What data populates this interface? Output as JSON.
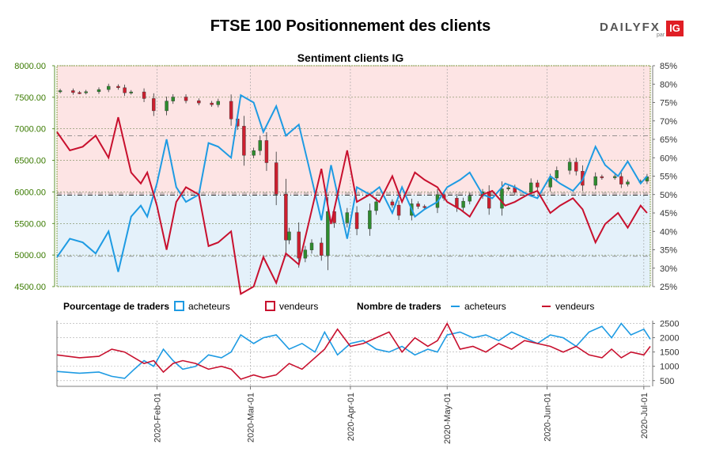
{
  "header": {
    "title": "FTSE 100 Positionnement des clients",
    "logo": {
      "daily": "DAILY",
      "fx": "FX",
      "par": "par",
      "ig": "IG"
    }
  },
  "legend": {
    "percentage_label": "Pourcentage de traders",
    "count_label": "Nombre de traders",
    "buyers": "acheteurs",
    "sellers": "vendeurs"
  },
  "colors": {
    "buyers": "#1e9be3",
    "sellers": "#c8102e",
    "up_candle": "#2e8b2e",
    "down_candle": "#cc1f2f",
    "short_zone": "#fde4e4",
    "long_zone": "#e4f1fa",
    "left_axis_text": "#3a7a00"
  },
  "chart_data": [
    {
      "type": "candlestick",
      "title": "Sentiment clients IG",
      "x_range": [
        "2020-01-01",
        "2020-07-03"
      ],
      "x_ticks": [
        "2020-Feb-01",
        "2020-Mar-01",
        "2020-Apr-01",
        "2020-May-01",
        "2020-Jun-01",
        "2020-Jul-01"
      ],
      "y_left": {
        "range": [
          4500,
          8000
        ],
        "ticks": [
          "4500.00",
          "5000.00",
          "5500.00",
          "6000.00",
          "6500.00",
          "7000.00",
          "7500.00",
          "8000.00"
        ]
      },
      "y_right": {
        "range": [
          25,
          85
        ],
        "ticks": [
          "25%",
          "30%",
          "35%",
          "40%",
          "45%",
          "50%",
          "55%",
          "60%",
          "65%",
          "70%",
          "75%",
          "80%",
          "85%"
        ]
      },
      "reference_lines": [
        5950,
        6890,
        5980,
        4980
      ],
      "price_close": [
        [
          "2020-01-02",
          7605
        ],
        [
          "2020-01-06",
          7575
        ],
        [
          "2020-01-08",
          7574
        ],
        [
          "2020-01-10",
          7588
        ],
        [
          "2020-01-14",
          7622
        ],
        [
          "2020-01-17",
          7674
        ],
        [
          "2020-01-20",
          7651
        ],
        [
          "2020-01-22",
          7571
        ],
        [
          "2020-01-24",
          7585
        ],
        [
          "2020-01-28",
          7480
        ],
        [
          "2020-01-31",
          7286
        ],
        [
          "2020-02-04",
          7440
        ],
        [
          "2020-02-06",
          7504
        ],
        [
          "2020-02-10",
          7446
        ],
        [
          "2020-02-14",
          7409
        ],
        [
          "2020-02-18",
          7382
        ],
        [
          "2020-02-20",
          7436
        ],
        [
          "2020-02-24",
          7157
        ],
        [
          "2020-02-26",
          7042
        ],
        [
          "2020-02-28",
          6580
        ],
        [
          "2020-03-02",
          6654
        ],
        [
          "2020-03-04",
          6815
        ],
        [
          "2020-03-06",
          6463
        ],
        [
          "2020-03-09",
          5965
        ],
        [
          "2020-03-12",
          5237
        ],
        [
          "2020-03-13",
          5367
        ],
        [
          "2020-03-16",
          4950
        ],
        [
          "2020-03-18",
          5080
        ],
        [
          "2020-03-20",
          5191
        ],
        [
          "2020-03-23",
          4994
        ],
        [
          "2020-03-25",
          5689
        ],
        [
          "2020-03-27",
          5510
        ],
        [
          "2020-03-31",
          5672
        ],
        [
          "2020-04-03",
          5416
        ],
        [
          "2020-04-07",
          5704
        ],
        [
          "2020-04-09",
          5843
        ],
        [
          "2020-04-14",
          5791
        ],
        [
          "2020-04-16",
          5628
        ],
        [
          "2020-04-20",
          5812
        ],
        [
          "2020-04-22",
          5770
        ],
        [
          "2020-04-24",
          5752
        ],
        [
          "2020-04-28",
          5958
        ],
        [
          "2020-04-30",
          5901
        ],
        [
          "2020-05-04",
          5753
        ],
        [
          "2020-05-06",
          5853
        ],
        [
          "2020-05-08",
          5936
        ],
        [
          "2020-05-12",
          6002
        ],
        [
          "2020-05-14",
          5741
        ],
        [
          "2020-05-18",
          6049
        ],
        [
          "2020-05-20",
          6067
        ],
        [
          "2020-05-22",
          5993
        ],
        [
          "2020-05-27",
          6144
        ],
        [
          "2020-05-29",
          6076
        ],
        [
          "2020-06-02",
          6220
        ],
        [
          "2020-06-04",
          6341
        ],
        [
          "2020-06-08",
          6473
        ],
        [
          "2020-06-10",
          6329
        ],
        [
          "2020-06-12",
          6105
        ],
        [
          "2020-06-16",
          6243
        ],
        [
          "2020-06-18",
          6224
        ],
        [
          "2020-06-22",
          6245
        ],
        [
          "2020-06-24",
          6123
        ],
        [
          "2020-06-26",
          6159
        ],
        [
          "2020-06-30",
          6170
        ],
        [
          "2020-07-02",
          6240
        ]
      ],
      "buyers_pct": [
        [
          "2020-01-01",
          33
        ],
        [
          "2020-01-05",
          38
        ],
        [
          "2020-01-09",
          37
        ],
        [
          "2020-01-13",
          34
        ],
        [
          "2020-01-17",
          40
        ],
        [
          "2020-01-20",
          29
        ],
        [
          "2020-01-24",
          44
        ],
        [
          "2020-01-27",
          47
        ],
        [
          "2020-01-29",
          44
        ],
        [
          "2020-02-01",
          53
        ],
        [
          "2020-02-04",
          65
        ],
        [
          "2020-02-07",
          52
        ],
        [
          "2020-02-10",
          48
        ],
        [
          "2020-02-14",
          50
        ],
        [
          "2020-02-17",
          64
        ],
        [
          "2020-02-20",
          63
        ],
        [
          "2020-02-24",
          60
        ],
        [
          "2020-02-27",
          77
        ],
        [
          "2020-03-02",
          75
        ],
        [
          "2020-03-05",
          67
        ],
        [
          "2020-03-09",
          74
        ],
        [
          "2020-03-12",
          66
        ],
        [
          "2020-03-16",
          69
        ],
        [
          "2020-03-19",
          58
        ],
        [
          "2020-03-23",
          43
        ],
        [
          "2020-03-26",
          58
        ],
        [
          "2020-03-31",
          38
        ],
        [
          "2020-04-03",
          52
        ],
        [
          "2020-04-07",
          50
        ],
        [
          "2020-04-10",
          52
        ],
        [
          "2020-04-14",
          45
        ],
        [
          "2020-04-17",
          52
        ],
        [
          "2020-04-21",
          44
        ],
        [
          "2020-04-24",
          46
        ],
        [
          "2020-04-28",
          48
        ],
        [
          "2020-05-01",
          52
        ],
        [
          "2020-05-05",
          54
        ],
        [
          "2020-05-08",
          56
        ],
        [
          "2020-05-12",
          50
        ],
        [
          "2020-05-15",
          49
        ],
        [
          "2020-05-19",
          53
        ],
        [
          "2020-05-22",
          52
        ],
        [
          "2020-05-26",
          50
        ],
        [
          "2020-05-29",
          49
        ],
        [
          "2020-06-02",
          55
        ],
        [
          "2020-06-05",
          53
        ],
        [
          "2020-06-09",
          51
        ],
        [
          "2020-06-12",
          54
        ],
        [
          "2020-06-16",
          63
        ],
        [
          "2020-06-19",
          58
        ],
        [
          "2020-06-23",
          55
        ],
        [
          "2020-06-26",
          59
        ],
        [
          "2020-06-30",
          53
        ],
        [
          "2020-07-02",
          55
        ]
      ],
      "sellers_pct": [
        [
          "2020-01-01",
          67
        ],
        [
          "2020-01-05",
          62
        ],
        [
          "2020-01-09",
          63
        ],
        [
          "2020-01-13",
          66
        ],
        [
          "2020-01-17",
          60
        ],
        [
          "2020-01-20",
          71
        ],
        [
          "2020-01-24",
          56
        ],
        [
          "2020-01-27",
          53
        ],
        [
          "2020-01-29",
          56
        ],
        [
          "2020-02-01",
          47
        ],
        [
          "2020-02-04",
          35
        ],
        [
          "2020-02-07",
          48
        ],
        [
          "2020-02-10",
          52
        ],
        [
          "2020-02-14",
          50
        ],
        [
          "2020-02-17",
          36
        ],
        [
          "2020-02-20",
          37
        ],
        [
          "2020-02-24",
          40
        ],
        [
          "2020-02-27",
          23
        ],
        [
          "2020-03-02",
          25
        ],
        [
          "2020-03-05",
          33
        ],
        [
          "2020-03-09",
          26
        ],
        [
          "2020-03-12",
          34
        ],
        [
          "2020-03-16",
          31
        ],
        [
          "2020-03-19",
          42
        ],
        [
          "2020-03-23",
          57
        ],
        [
          "2020-03-26",
          42
        ],
        [
          "2020-03-31",
          62
        ],
        [
          "2020-04-03",
          48
        ],
        [
          "2020-04-07",
          50
        ],
        [
          "2020-04-10",
          48
        ],
        [
          "2020-04-14",
          55
        ],
        [
          "2020-04-17",
          48
        ],
        [
          "2020-04-21",
          56
        ],
        [
          "2020-04-24",
          54
        ],
        [
          "2020-04-28",
          52
        ],
        [
          "2020-05-01",
          48
        ],
        [
          "2020-05-05",
          46
        ],
        [
          "2020-05-08",
          44
        ],
        [
          "2020-05-12",
          50
        ],
        [
          "2020-05-15",
          51
        ],
        [
          "2020-05-19",
          47
        ],
        [
          "2020-05-22",
          48
        ],
        [
          "2020-05-26",
          50
        ],
        [
          "2020-05-29",
          51
        ],
        [
          "2020-06-02",
          45
        ],
        [
          "2020-06-05",
          47
        ],
        [
          "2020-06-09",
          49
        ],
        [
          "2020-06-12",
          46
        ],
        [
          "2020-06-16",
          37
        ],
        [
          "2020-06-19",
          42
        ],
        [
          "2020-06-23",
          45
        ],
        [
          "2020-06-26",
          41
        ],
        [
          "2020-06-30",
          47
        ],
        [
          "2020-07-02",
          45
        ]
      ]
    },
    {
      "type": "line",
      "title": "",
      "y_range": [
        300,
        2600
      ],
      "y_ticks": [
        "500",
        "1000",
        "1500",
        "2000",
        "2500"
      ],
      "series": [
        {
          "name": "acheteurs",
          "points": [
            [
              "2020-01-01",
              820
            ],
            [
              "2020-01-08",
              760
            ],
            [
              "2020-01-14",
              800
            ],
            [
              "2020-01-18",
              650
            ],
            [
              "2020-01-22",
              580
            ],
            [
              "2020-01-25",
              900
            ],
            [
              "2020-01-28",
              1200
            ],
            [
              "2020-01-31",
              1000
            ],
            [
              "2020-02-03",
              1600
            ],
            [
              "2020-02-06",
              1200
            ],
            [
              "2020-02-09",
              900
            ],
            [
              "2020-02-13",
              1000
            ],
            [
              "2020-02-17",
              1400
            ],
            [
              "2020-02-21",
              1300
            ],
            [
              "2020-02-24",
              1500
            ],
            [
              "2020-02-27",
              2100
            ],
            [
              "2020-03-02",
              1800
            ],
            [
              "2020-03-05",
              2000
            ],
            [
              "2020-03-09",
              2100
            ],
            [
              "2020-03-13",
              1600
            ],
            [
              "2020-03-17",
              1800
            ],
            [
              "2020-03-21",
              1500
            ],
            [
              "2020-03-24",
              2200
            ],
            [
              "2020-03-28",
              1400
            ],
            [
              "2020-04-01",
              1800
            ],
            [
              "2020-04-05",
              1900
            ],
            [
              "2020-04-09",
              1600
            ],
            [
              "2020-04-13",
              1500
            ],
            [
              "2020-04-17",
              1700
            ],
            [
              "2020-04-21",
              1400
            ],
            [
              "2020-04-25",
              1600
            ],
            [
              "2020-04-28",
              1500
            ],
            [
              "2020-05-01",
              2100
            ],
            [
              "2020-05-05",
              2200
            ],
            [
              "2020-05-09",
              2000
            ],
            [
              "2020-05-13",
              2100
            ],
            [
              "2020-05-17",
              1900
            ],
            [
              "2020-05-21",
              2200
            ],
            [
              "2020-05-25",
              2000
            ],
            [
              "2020-05-29",
              1800
            ],
            [
              "2020-06-02",
              2100
            ],
            [
              "2020-06-06",
              2000
            ],
            [
              "2020-06-10",
              1700
            ],
            [
              "2020-06-14",
              2200
            ],
            [
              "2020-06-18",
              2400
            ],
            [
              "2020-06-21",
              2000
            ],
            [
              "2020-06-24",
              2500
            ],
            [
              "2020-06-27",
              2100
            ],
            [
              "2020-07-01",
              2300
            ],
            [
              "2020-07-03",
              1950
            ]
          ]
        },
        {
          "name": "vendeurs",
          "points": [
            [
              "2020-01-01",
              1400
            ],
            [
              "2020-01-08",
              1300
            ],
            [
              "2020-01-14",
              1350
            ],
            [
              "2020-01-18",
              1600
            ],
            [
              "2020-01-22",
              1500
            ],
            [
              "2020-01-25",
              1300
            ],
            [
              "2020-01-28",
              1100
            ],
            [
              "2020-01-31",
              1200
            ],
            [
              "2020-02-03",
              800
            ],
            [
              "2020-02-06",
              1100
            ],
            [
              "2020-02-09",
              1200
            ],
            [
              "2020-02-13",
              1100
            ],
            [
              "2020-02-17",
              900
            ],
            [
              "2020-02-21",
              1000
            ],
            [
              "2020-02-24",
              900
            ],
            [
              "2020-02-27",
              550
            ],
            [
              "2020-03-02",
              700
            ],
            [
              "2020-03-05",
              600
            ],
            [
              "2020-03-09",
              700
            ],
            [
              "2020-03-13",
              1100
            ],
            [
              "2020-03-17",
              900
            ],
            [
              "2020-03-21",
              1300
            ],
            [
              "2020-03-24",
              1600
            ],
            [
              "2020-03-28",
              2300
            ],
            [
              "2020-04-01",
              1700
            ],
            [
              "2020-04-05",
              1800
            ],
            [
              "2020-04-09",
              2000
            ],
            [
              "2020-04-13",
              2200
            ],
            [
              "2020-04-17",
              1500
            ],
            [
              "2020-04-21",
              2000
            ],
            [
              "2020-04-25",
              1700
            ],
            [
              "2020-04-28",
              1900
            ],
            [
              "2020-05-01",
              2500
            ],
            [
              "2020-05-05",
              1600
            ],
            [
              "2020-05-09",
              1700
            ],
            [
              "2020-05-13",
              1500
            ],
            [
              "2020-05-17",
              1800
            ],
            [
              "2020-05-21",
              1600
            ],
            [
              "2020-05-25",
              1900
            ],
            [
              "2020-05-29",
              1800
            ],
            [
              "2020-06-02",
              1700
            ],
            [
              "2020-06-06",
              1500
            ],
            [
              "2020-06-10",
              1700
            ],
            [
              "2020-06-14",
              1400
            ],
            [
              "2020-06-18",
              1300
            ],
            [
              "2020-06-21",
              1600
            ],
            [
              "2020-06-24",
              1300
            ],
            [
              "2020-06-27",
              1500
            ],
            [
              "2020-07-01",
              1400
            ],
            [
              "2020-07-03",
              1700
            ]
          ]
        }
      ]
    }
  ]
}
